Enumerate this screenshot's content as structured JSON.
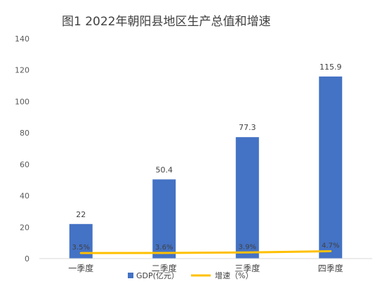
{
  "chart_data": {
    "type": "bar",
    "title": "图1   2022年朝阳县地区生产总值和增速",
    "categories": [
      "一季度",
      "二季度",
      "三季度",
      "四季度"
    ],
    "series": [
      {
        "name": "GDP(亿元）",
        "type": "bar",
        "values": [
          22,
          50.4,
          77.3,
          115.9
        ],
        "labels": [
          "22",
          "50.4",
          "77.3",
          "115.9"
        ],
        "color": "#4472C4"
      },
      {
        "name": "增速（%）",
        "type": "line",
        "values": [
          3.5,
          3.6,
          3.9,
          4.7
        ],
        "labels": [
          "3.5%",
          "3.6%",
          "3.9%",
          "4.7%"
        ],
        "color": "#FFC000"
      }
    ],
    "ylim": [
      0,
      140
    ],
    "yticks": [
      0,
      20,
      40,
      60,
      80,
      100,
      120,
      140
    ],
    "ytick_labels": [
      "0",
      "20",
      "40",
      "60",
      "80",
      "100",
      "120",
      "140"
    ],
    "grid": false,
    "legend": "bottom"
  }
}
